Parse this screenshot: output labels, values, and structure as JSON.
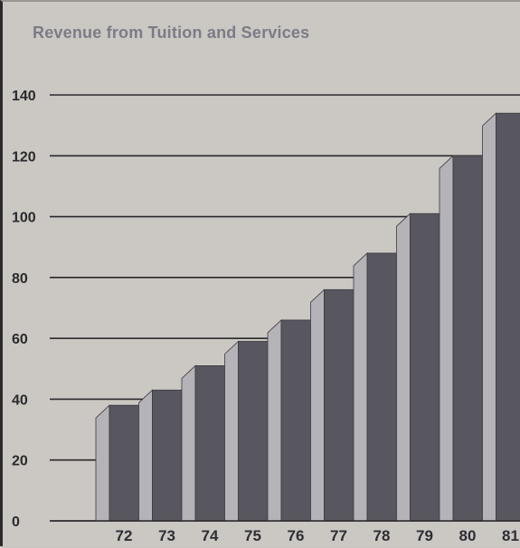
{
  "chart_data": {
    "type": "bar",
    "title": "Revenue from Tuition and Services",
    "categories": [
      "72",
      "73",
      "74",
      "75",
      "76",
      "77",
      "78",
      "79",
      "80",
      "81"
    ],
    "values": [
      38,
      43,
      51,
      59,
      66,
      76,
      88,
      101,
      120,
      134
    ],
    "ylim": [
      0,
      140
    ],
    "yticks": [
      0,
      20,
      40,
      60,
      80,
      100,
      120,
      140
    ],
    "xlabel": "",
    "ylabel": "",
    "grid": true,
    "colors": {
      "background": "#cbc7c3",
      "bar_front": "#58575f",
      "bar_side": "#b5b3b7",
      "grid": "#2a2a2a"
    }
  }
}
